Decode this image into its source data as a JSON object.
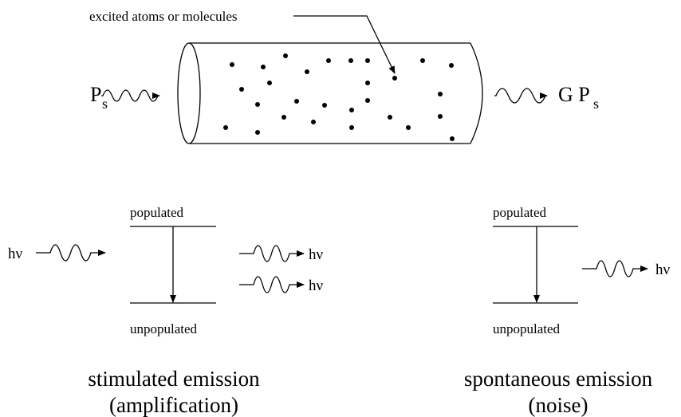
{
  "cylinder": {
    "label": "excited atoms or molecules",
    "input": {
      "text": "P",
      "sub": "s"
    },
    "output": {
      "text": "G P",
      "sub": "s"
    }
  },
  "stimulated": {
    "upper": "populated",
    "lower": "unpopulated",
    "photon_in": "hν",
    "photons_out": [
      "hν",
      "hν"
    ],
    "title": "stimulated emission",
    "subtitle": "(amplification)"
  },
  "spontaneous": {
    "upper": "populated",
    "lower": "unpopulated",
    "photon_out": "hν",
    "title": "spontaneous emission",
    "subtitle": "(noise)"
  }
}
